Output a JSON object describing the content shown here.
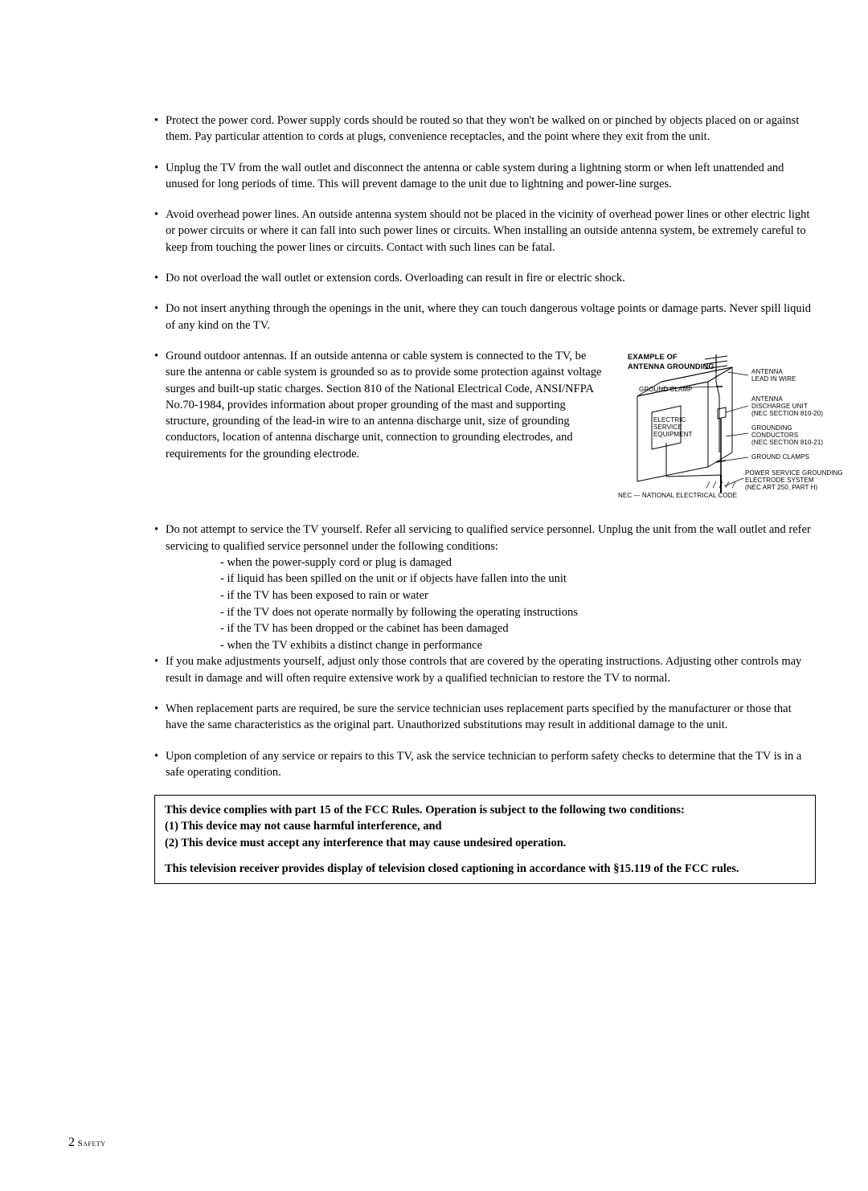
{
  "bullets": [
    {
      "text": "Protect the power cord. Power supply cords should be routed so that they won't be walked on or pinched by objects placed on or against them. Pay particular attention to cords at plugs, convenience receptacles, and the point where they exit from the unit."
    },
    {
      "text": "Unplug the TV from the wall outlet and disconnect the antenna or cable system during a lightning storm or when left unattended and unused for long periods of time. This will prevent damage to the unit due to lightning and power-line surges."
    },
    {
      "text": "Avoid overhead power lines. An outside antenna system should not be placed in the vicinity of overhead power lines or other electric light or power circuits or where it can fall into such power lines or circuits. When installing an outside antenna system, be extremely careful to keep from touching the power lines or circuits. Contact with such lines can be fatal."
    },
    {
      "text": "Do not overload the wall outlet or extension cords. Overloading can result in fire or electric shock."
    },
    {
      "text": "Do not insert anything through the openings in the unit, where they can touch dangerous voltage points or damage parts. Never spill liquid of any kind on the TV."
    },
    {
      "text": "Ground outdoor antennas. If an outside antenna or cable system is connected to the TV, be sure the antenna or cable system is grounded so as to provide some protection against voltage surges and built-up static charges. Section 810 of the National Electrical Code, ANSI/NFPA No.70-1984, provides information about proper grounding of the mast and supporting structure, grounding of the lead-in wire to an antenna discharge unit, size of grounding conductors, location of antenna discharge unit, connection to grounding electrodes, and requirements for the grounding electrode.",
      "has_diagram": true
    },
    {
      "text": "Do not attempt to service the TV yourself. Refer all servicing to qualified service personnel. Unplug the unit from the wall outlet and refer servicing to qualified service personnel under the following conditions:",
      "sublist": [
        "- when the power-supply cord or plug is damaged",
        "- if liquid has been spilled on the unit or if objects have fallen into the unit",
        "- if the TV has been exposed to rain or water",
        "- if the TV does not operate normally by following the operating instructions",
        "- if the TV has been dropped or the cabinet has been damaged",
        "- when the TV exhibits a distinct change in performance"
      ],
      "no_bottom_margin": true
    },
    {
      "text": "If you make adjustments yourself, adjust only those controls that are covered by the operating instructions. Adjusting other controls may result in damage and will often require extensive work by a qualified technician to restore the TV to normal."
    },
    {
      "text": "When replacement parts are required, be sure the service technician uses replacement parts specified by the manufacturer or those that have the same characteristics as the original part. Unauthorized substitutions may result in additional damage to the unit."
    },
    {
      "text": "Upon completion of any service or repairs to this TV, ask the service technician to perform safety checks to determine that the TV is in a safe operating condition."
    }
  ],
  "diagram": {
    "title_line1": "EXAMPLE OF",
    "title_line2": "ANTENNA GROUNDING",
    "labels": {
      "antenna_lead": "ANTENNA\nLEAD IN WIRE",
      "ground_clamp_top": "GROUND CLAMP",
      "discharge_unit": "ANTENNA\nDISCHARGE UNIT\n(NEC SECTION 810-20)",
      "electric_service": "ELECTRIC\nSERVICE\nEQUIPMENT",
      "conductors": "GROUNDING\nCONDUCTORS\n(NEC SECTION 810-21)",
      "ground_clamps": "GROUND CLAMPS",
      "power_service": "POWER SERVICE GROUNDING\nELECTRODE SYSTEM\n(NEC ART 250, PART H)",
      "nec": "NEC — NATIONAL ELECTRICAL CODE"
    }
  },
  "compliance": {
    "line1": "This device complies with part 15 of the FCC Rules.  Operation is subject to the following two conditions:",
    "item1": "(1) This device may not cause harmful interference, and",
    "item2": "(2) This device must accept any interference that may cause undesired operation.",
    "line2": "This television receiver provides display of television closed captioning in accordance with §15.119 of the FCC rules."
  },
  "footer": {
    "page": "2",
    "section": "Safety"
  }
}
